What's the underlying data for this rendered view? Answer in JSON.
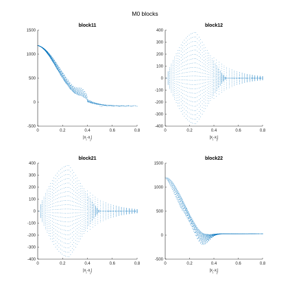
{
  "figure_title": "M0 blocks",
  "series_color": "#0072BD",
  "chart_data": [
    {
      "type": "scatter",
      "title": "block11",
      "xlabel": "|x_i-x_j|",
      "ylabel": "",
      "xlim": [
        0,
        0.8
      ],
      "ylim": [
        -500,
        1500
      ],
      "xticks": [
        "0",
        "0.2",
        "0.4",
        "0.6",
        "0.8"
      ],
      "yticks": [
        "-500",
        "0",
        "500",
        "1000",
        "1500"
      ],
      "grid": false,
      "pattern": "decay_fan",
      "points_summary": {
        "start": [
          0.0,
          1180
        ],
        "end": [
          0.8,
          -80
        ],
        "min": [
          0.55,
          -90
        ]
      }
    },
    {
      "type": "scatter",
      "title": "block12",
      "xlabel": "|x_i-x_j|",
      "ylabel": "",
      "xlim": [
        0,
        0.8
      ],
      "ylim": [
        -400,
        400
      ],
      "xticks": [
        "0",
        "0.2",
        "0.4",
        "0.6",
        "0.8"
      ],
      "yticks": [
        "-400",
        "-300",
        "-200",
        "-100",
        "0",
        "100",
        "200",
        "300",
        "400"
      ],
      "grid": false,
      "pattern": "symmetric_lens",
      "points_summary": {
        "peak": [
          0.25,
          380
        ],
        "trough": [
          0.25,
          -380
        ],
        "end": [
          0.8,
          0
        ]
      }
    },
    {
      "type": "scatter",
      "title": "block21",
      "xlabel": "|x_i-x_j|",
      "ylabel": "",
      "xlim": [
        0,
        0.8
      ],
      "ylim": [
        -400,
        400
      ],
      "xticks": [
        "0",
        "0.2",
        "0.4",
        "0.6",
        "0.8"
      ],
      "yticks": [
        "-400",
        "-300",
        "-200",
        "-100",
        "0",
        "100",
        "200",
        "300",
        "400"
      ],
      "grid": false,
      "pattern": "symmetric_lens",
      "points_summary": {
        "peak": [
          0.25,
          380
        ],
        "trough": [
          0.25,
          -380
        ],
        "end": [
          0.8,
          0
        ]
      }
    },
    {
      "type": "scatter",
      "title": "block22",
      "xlabel": "|x_i-x_j|",
      "ylabel": "",
      "xlim": [
        0,
        0.8
      ],
      "ylim": [
        -500,
        1500
      ],
      "xticks": [
        "0",
        "0.2",
        "0.4",
        "0.6",
        "0.8"
      ],
      "yticks": [
        "-500",
        "0",
        "500",
        "1000",
        "1500"
      ],
      "grid": false,
      "pattern": "decay_dip",
      "points_summary": {
        "start": [
          0.0,
          1200
        ],
        "min": [
          0.3,
          -300
        ],
        "end": [
          0.8,
          30
        ]
      }
    }
  ]
}
